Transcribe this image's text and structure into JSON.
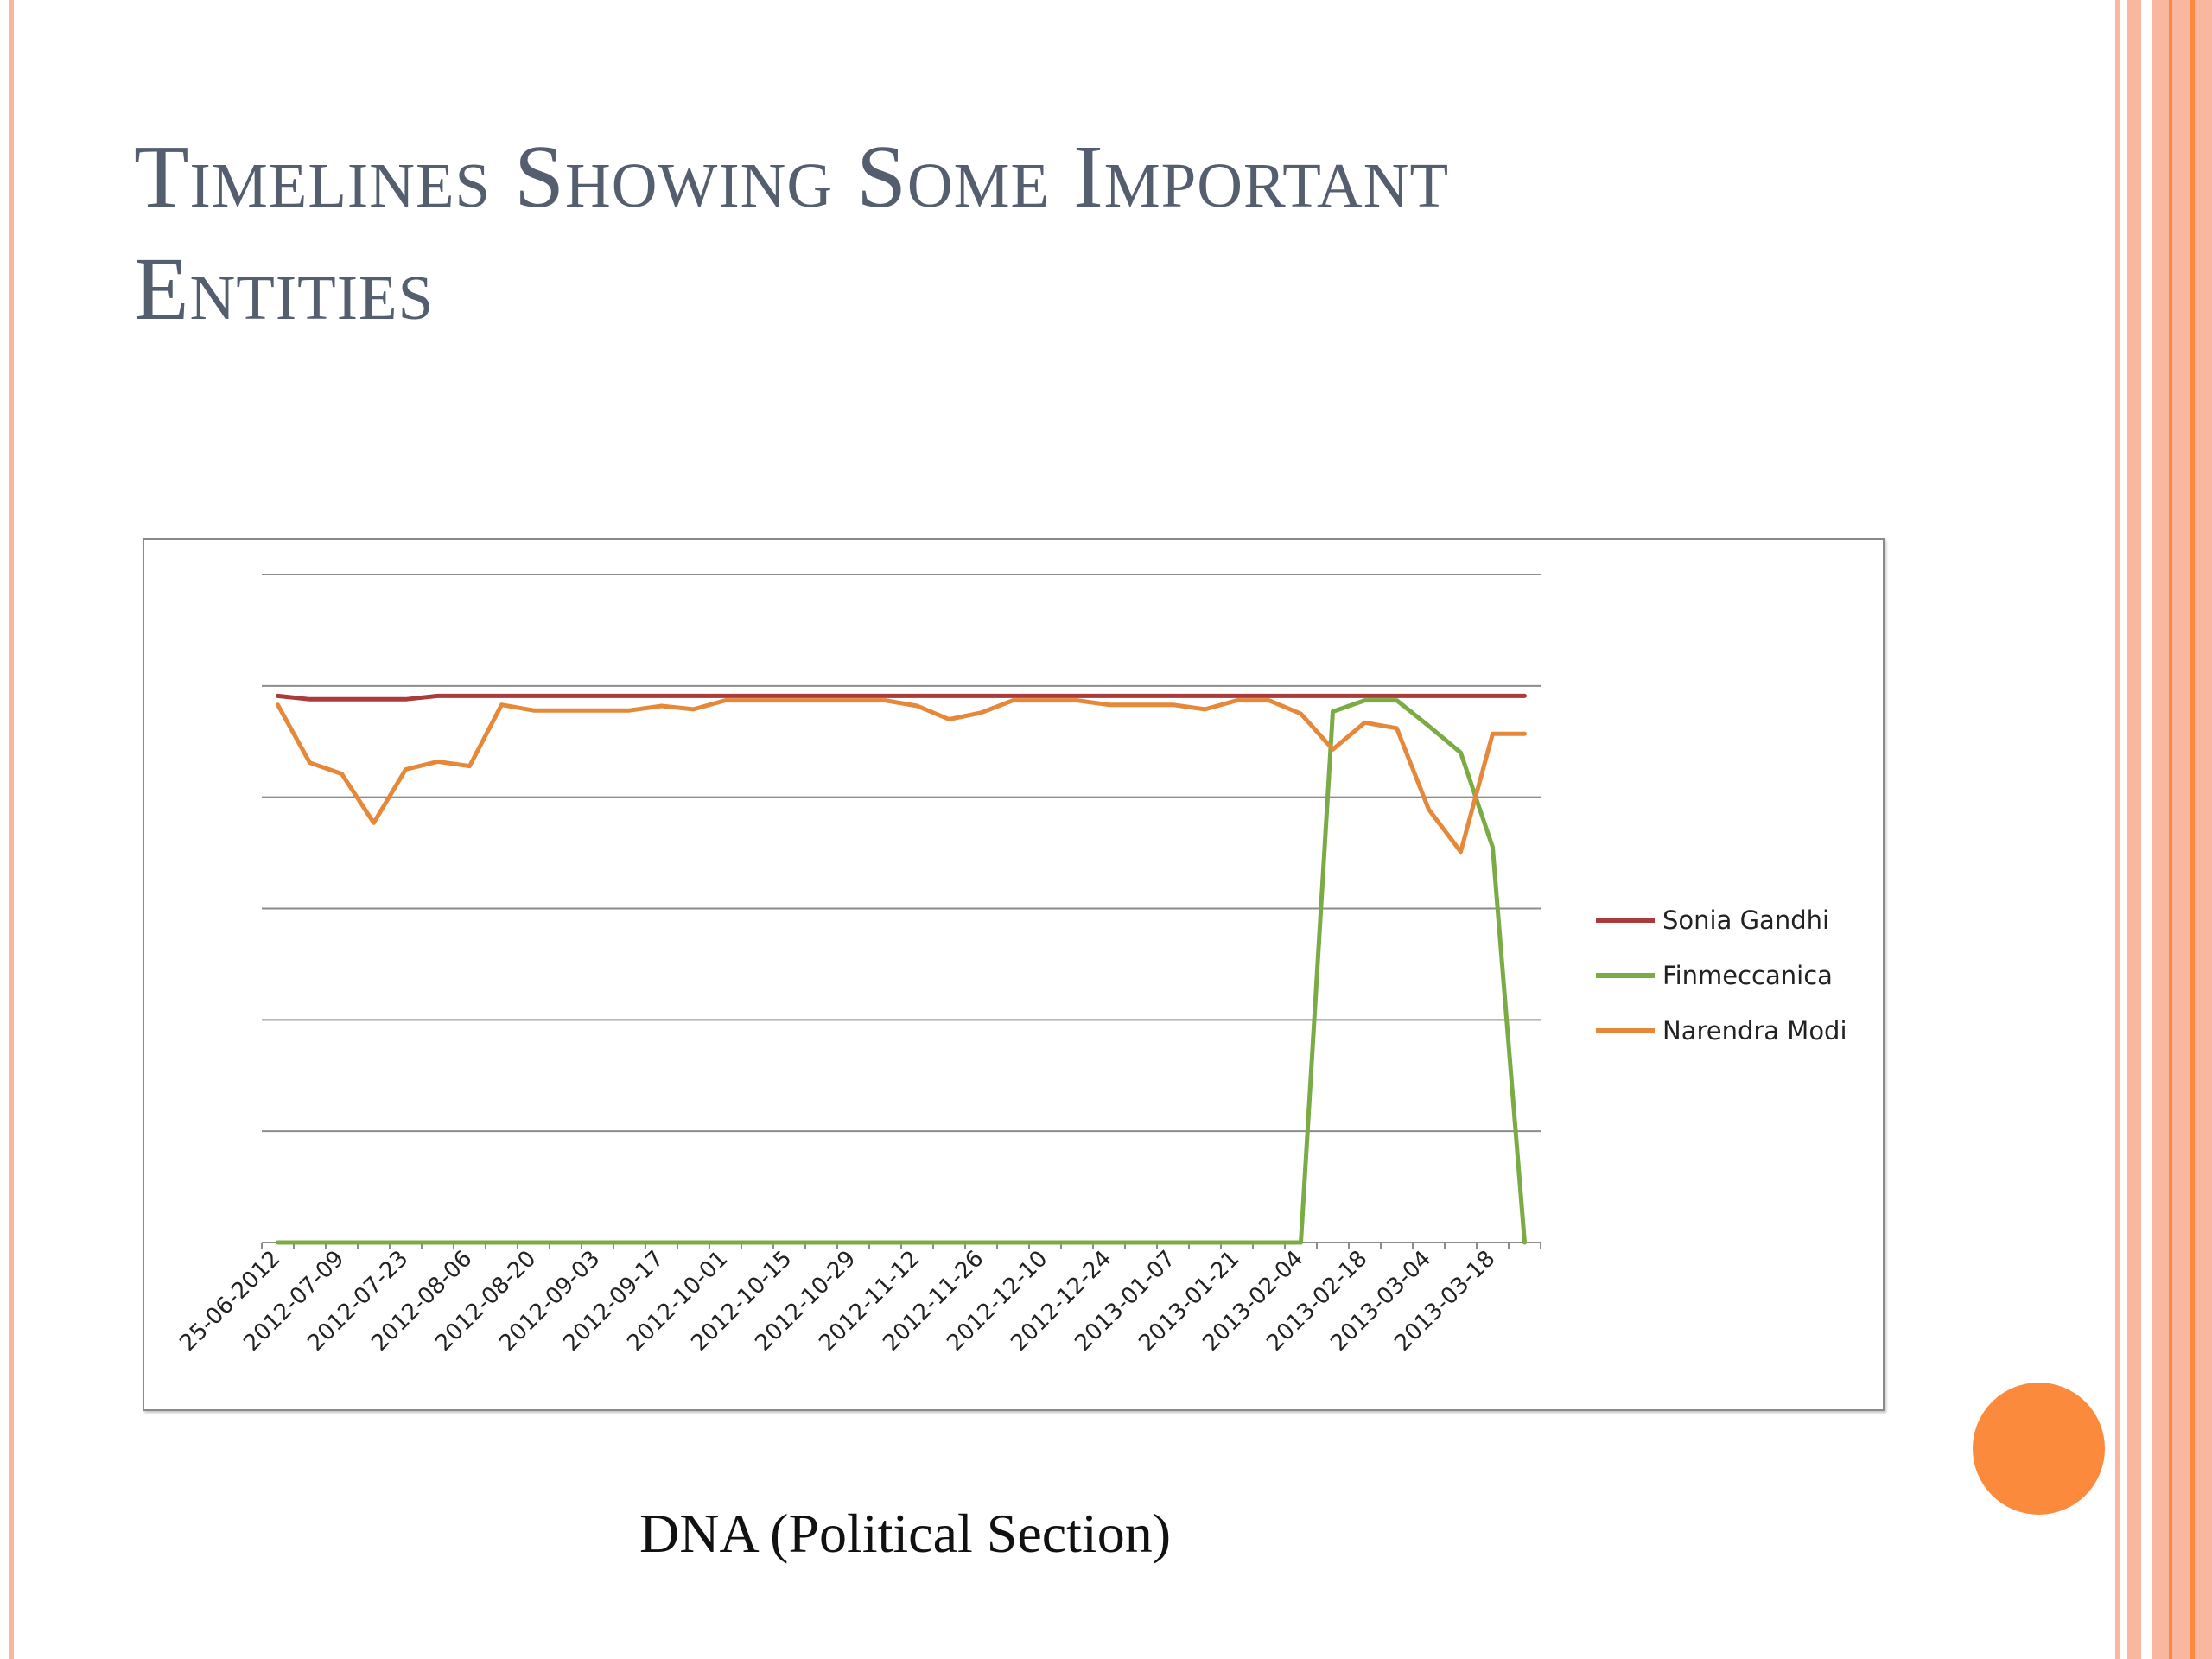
{
  "slide": {
    "title_line1": "Timelines Showing Some Important",
    "title_line2": "Entities",
    "caption": "DNA (Political Section)",
    "accent_color": "#f9b79f",
    "dot_color": "#fb8a3c"
  },
  "chart_data": {
    "type": "line",
    "x_tick_labels": [
      "25-06-2012",
      "2012-07-09",
      "2012-07-23",
      "2012-08-06",
      "2012-08-20",
      "2012-09-03",
      "2012-09-17",
      "2012-10-01",
      "2012-10-15",
      "2012-10-29",
      "2012-11-12",
      "2012-11-26",
      "2012-12-10",
      "2012-12-24",
      "2013-01-07",
      "2013-01-21",
      "2013-02-04",
      "2013-02-18",
      "2013-03-04",
      "2013-03-18"
    ],
    "point_count": 40,
    "y_gridlines": 6,
    "y_tick_labels": [],
    "y_range": [
      0,
      6
    ],
    "legend_position": "right",
    "series": [
      {
        "name": "Sonia Gandhi",
        "color": "#a93b3b",
        "values": [
          4.91,
          4.88,
          4.88,
          4.88,
          4.88,
          4.91,
          4.91,
          4.91,
          4.91,
          4.91,
          4.91,
          4.91,
          4.91,
          4.91,
          4.91,
          4.91,
          4.91,
          4.91,
          4.91,
          4.91,
          4.91,
          4.91,
          4.91,
          4.91,
          4.91,
          4.91,
          4.91,
          4.91,
          4.91,
          4.91,
          4.91,
          4.91,
          4.91,
          4.91,
          4.91,
          4.91,
          4.91,
          4.91,
          4.91,
          4.91
        ]
      },
      {
        "name": "Finmeccanica",
        "color": "#7bab45",
        "values": [
          0,
          0,
          0,
          0,
          0,
          0,
          0,
          0,
          0,
          0,
          0,
          0,
          0,
          0,
          0,
          0,
          0,
          0,
          0,
          0,
          0,
          0,
          0,
          0,
          0,
          0,
          0,
          0,
          0,
          0,
          0,
          0,
          0,
          4.77,
          4.87,
          4.87,
          4.64,
          4.4,
          3.55,
          0
        ]
      },
      {
        "name": "Narendra Modi",
        "color": "#e6883a",
        "values": [
          4.83,
          4.31,
          4.21,
          3.77,
          4.25,
          4.32,
          4.28,
          4.83,
          4.78,
          4.78,
          4.78,
          4.78,
          4.82,
          4.79,
          4.87,
          4.87,
          4.87,
          4.87,
          4.87,
          4.87,
          4.82,
          4.7,
          4.76,
          4.87,
          4.87,
          4.87,
          4.83,
          4.83,
          4.83,
          4.79,
          4.87,
          4.87,
          4.75,
          4.43,
          4.67,
          4.62,
          3.89,
          3.51,
          4.57,
          4.57
        ]
      }
    ]
  }
}
